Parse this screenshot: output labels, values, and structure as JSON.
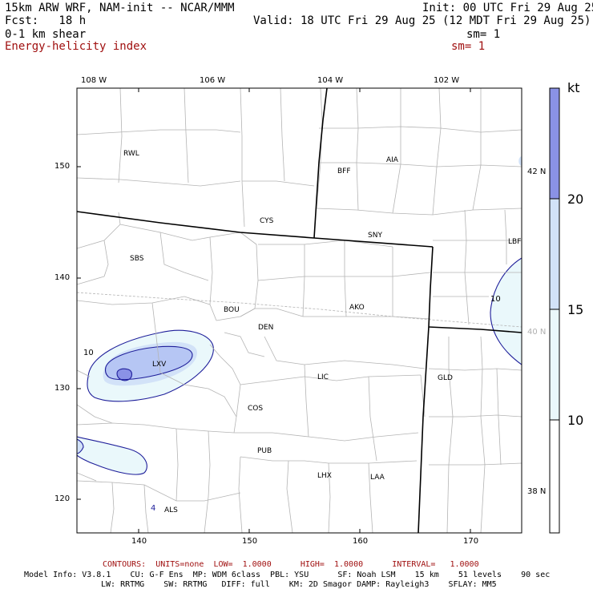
{
  "header": {
    "model": "15km ARW WRF, NAM-init -- NCAR/MMM",
    "init": "Init: 00 UTC Fri 29 Aug 25",
    "fcst": "Fcst:   18 h",
    "valid": "Valid: 18 UTC Fri 29 Aug 25 (12 MDT Fri 29 Aug 25)",
    "field1": "0-1 km shear",
    "field1_sm": "sm= 1",
    "field2": "Energy-helicity index",
    "field2_sm": "sm= 1"
  },
  "map": {
    "top_lon_labels": [
      "108 W",
      "106 W",
      "104 W",
      "102 W"
    ],
    "right_lat_labels": [
      "42 N",
      "40 N",
      "38 N"
    ],
    "left_ticks": [
      "150",
      "140",
      "130",
      "120"
    ],
    "bottom_ticks": [
      "140",
      "150",
      "160",
      "170"
    ],
    "stations": [
      "RWL",
      "BFF",
      "AIA",
      "CYS",
      "SNY",
      "LBF",
      "SBS",
      "BOU",
      "AKO",
      "DEN",
      "LXV",
      "LIC",
      "GLD",
      "COS",
      "PUB",
      "LHX",
      "LAA",
      "ALS"
    ],
    "contour_labels": [
      "10",
      "10",
      "4"
    ]
  },
  "colorbar": {
    "unit": "kt",
    "labels": [
      "20",
      "15",
      "10"
    ],
    "colors": {
      "c10": "#eaf8fb",
      "c15": "#d2e2f8",
      "c20": "#b6c6f4",
      "c25": "#8a92e6",
      "line": "#1e1e9a"
    }
  },
  "footer": {
    "contours": "CONTOURS:  UNITS=none  LOW=  1.0000      HIGH=  1.0000      INTERVAL=   1.0000",
    "info1": "Model Info: V3.8.1    CU: G-F Ens  MP: WDM 6class  PBL: YSU      SF: Noah LSM    15 km    51 levels    90 sec",
    "info2": "LW: RRTMG    SW: RRTMG   DIFF: full    KM: 2D Smagor DAMP: Rayleigh3    SFLAY: MM5"
  }
}
